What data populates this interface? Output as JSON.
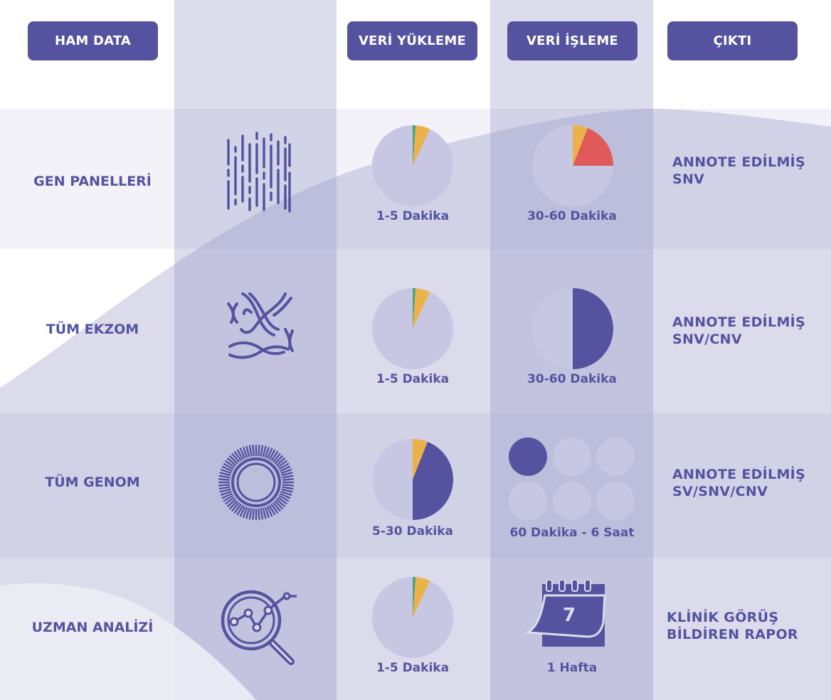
{
  "headers": {
    "raw_data": "HAM DATA",
    "upload": "VERİ YÜKLEME",
    "processing": "VERİ İŞLEME",
    "output": "ÇIKTI"
  },
  "rows": [
    {
      "label": "GEN PANELLERİ",
      "upload_time": "1-5 Dakika",
      "process_time": "30-60 Dakika",
      "output_line1": "ANNOTE EDİLMİŞ",
      "output_line2": "SNV"
    },
    {
      "label": "TÜM EKZOM",
      "upload_time": "1-5 Dakika",
      "process_time": "30-60 Dakika",
      "output_line1": "ANNOTE EDİLMİŞ",
      "output_line2": "SNV/CNV"
    },
    {
      "label": "TÜM GENOM",
      "upload_time": "5-30 Dakika",
      "process_time": "60 Dakika - 6 Saat",
      "output_line1": "ANNOTE EDİLMİŞ",
      "output_line2": "SV/SNV/CNV"
    },
    {
      "label": "UZMAN ANALİZİ",
      "upload_time": "1-5 Dakika",
      "process_time": "1 Hafta",
      "output_line1": "KLİNİK GÖRÜŞ",
      "output_line2": "BİLDİREN RAPOR"
    }
  ],
  "calendar": {
    "day": "7"
  },
  "colors": {
    "primary": "#5553a0",
    "pie_bg": "#c8c7e3",
    "yellow": "#ecb24a",
    "green": "#4aa57a",
    "red": "#e05a5a",
    "stripe": "#dcdcec"
  },
  "chart_data": {
    "type": "pie",
    "fill_fractions": {
      "gen_panel_upload": 0.07,
      "gen_panel_process": 0.25,
      "ekzom_upload": 0.07,
      "ekzom_process": 0.5,
      "genom_upload": 0.5,
      "genom_process_circles": "1/6",
      "uzman_upload": 0.07
    }
  }
}
